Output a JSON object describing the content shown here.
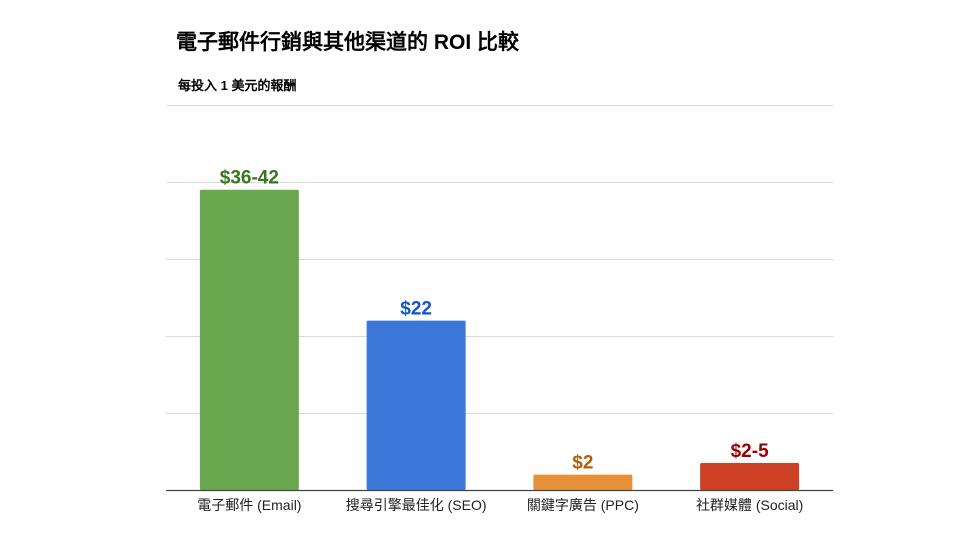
{
  "chart_data": {
    "type": "bar",
    "title": "電子郵件行銷與其他渠道的 ROI 比較",
    "subtitle": "每投入 1 美元的報酬",
    "xlabel": "",
    "ylabel": "",
    "ylim": [
      0,
      50
    ],
    "grid": true,
    "legend": "none",
    "categories": [
      "電子郵件 (Email)",
      "搜尋引擎最佳化 (SEO)",
      "關鍵字廣告 (PPC)",
      "社群媒體 (Social)"
    ],
    "values": [
      39,
      22,
      2,
      3.5
    ],
    "ranges": [
      [
        36,
        42
      ],
      null,
      null,
      [
        2,
        5
      ]
    ],
    "data_labels": [
      "$36-42",
      "$22",
      "$2",
      "$2-5"
    ],
    "colors": [
      "#6aa84f",
      "#3c78d8",
      "#e69138",
      "#cc4125"
    ],
    "label_colors": [
      "#38761d",
      "#1155cc",
      "#b45f06",
      "#990000"
    ]
  }
}
